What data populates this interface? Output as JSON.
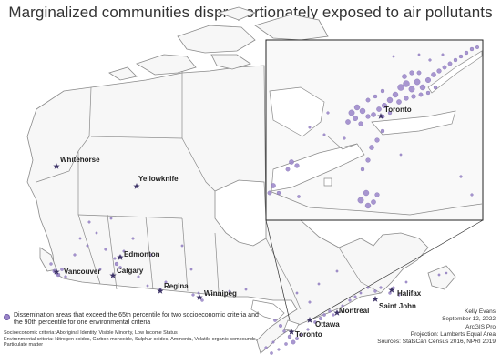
{
  "title": "Marginalized communities disproportionately exposed to air pollutants",
  "colors": {
    "dot": "#9b85c9",
    "dot_stroke": "#6f5ca8",
    "land": "#f7f7f7",
    "border": "#8a8a8a",
    "inset_frame": "#222222"
  },
  "cities": {
    "whitehorse": "Whitehorse",
    "yellowknife": "Yellowknife",
    "edmonton": "Edmonton",
    "vancouver": "Vancouver",
    "calgary": "Calgary",
    "regina": "Regina",
    "winnipeg": "Winnipeg",
    "montreal": "Montréal",
    "ottawa": "Ottawa",
    "toronto": "Toronto",
    "halifax": "Halifax",
    "saint_john": "Saint John",
    "toronto_inset": "Toronto"
  },
  "legend": {
    "item": "Dissemination areas that exceed the 65th percentile for two socioeconomic criteria and the 90th percentile for one environmental criteria",
    "socio": "Socioeconomic criteria: Aboriginal Identity, Visible Minority, Low Income Status",
    "env": "Environmental criteria: Nitrogen oxides, Carbon monoxide, Sulphur oxides, Ammonia, Volatile organic compounds, Particulate matter"
  },
  "credits": {
    "author": "Kelly Evans",
    "date": "September 12, 2022",
    "software": "ArcGIS Pro",
    "projection": "Projection: Lamberts Equal Area",
    "sources": "Sources: StatsCan Census 2016, NPRI 2019"
  }
}
